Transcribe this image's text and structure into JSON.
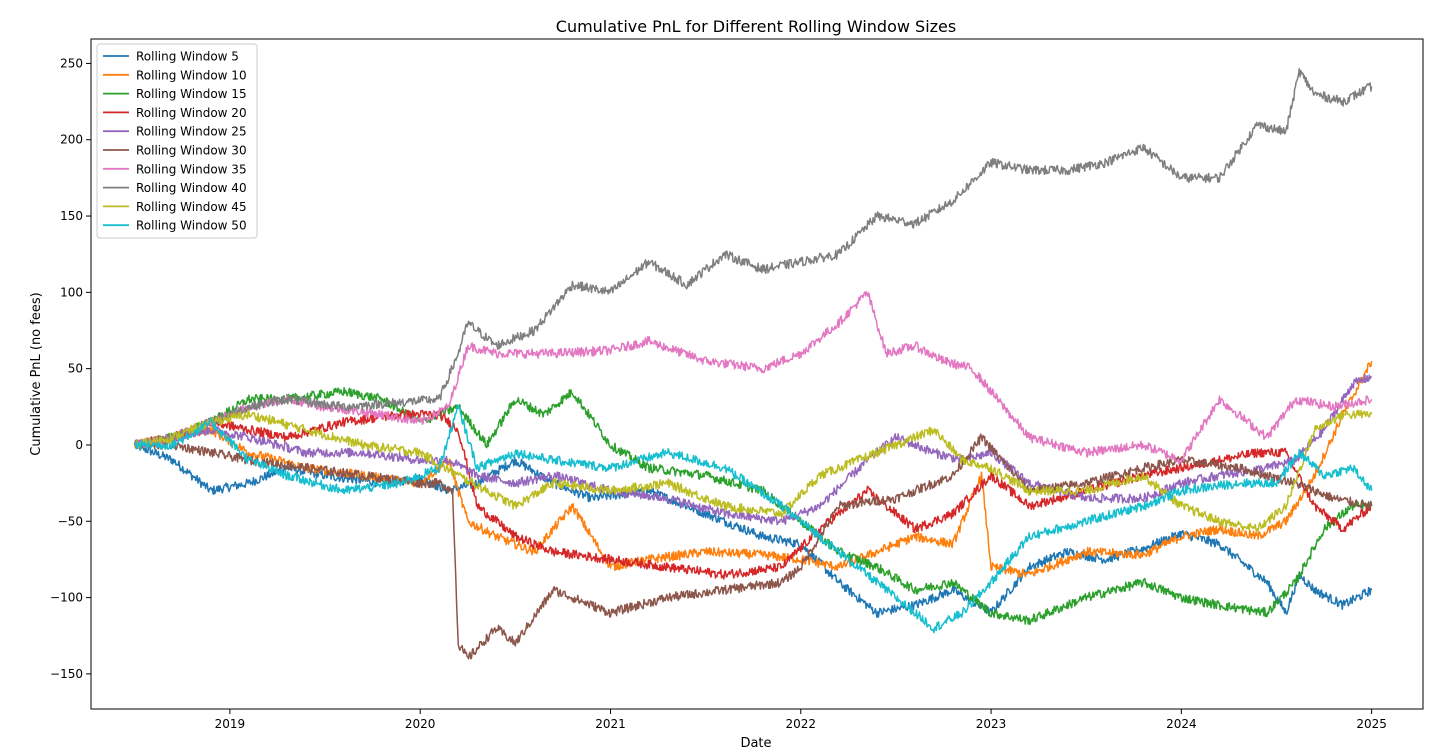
{
  "chart_data": {
    "type": "line",
    "title": "Cumulative PnL for Different Rolling Window Sizes",
    "xlabel": "Date",
    "ylabel": "Cumulative PnL (no fees)",
    "xlim": [
      2018.27,
      2025.27
    ],
    "ylim": [
      -173,
      266
    ],
    "x_ticks": [
      2019,
      2020,
      2021,
      2022,
      2023,
      2024,
      2025
    ],
    "x_tick_labels": [
      "2019",
      "2020",
      "2021",
      "2022",
      "2023",
      "2024",
      "2025"
    ],
    "y_ticks": [
      -150,
      -100,
      -50,
      0,
      50,
      100,
      150,
      200,
      250
    ],
    "y_tick_labels": [
      "−150",
      "−100",
      "−50",
      "0",
      "50",
      "100",
      "150",
      "200",
      "250"
    ],
    "grid": false,
    "legend_position": "top-left",
    "series": [
      {
        "name": "Rolling Window 5",
        "color": "#1f77b4",
        "x": [
          2018.5,
          2018.7,
          2018.9,
          2019.1,
          2019.3,
          2019.5,
          2019.8,
          2020.0,
          2020.15,
          2020.3,
          2020.5,
          2020.7,
          2020.9,
          2021.2,
          2021.5,
          2021.8,
          2022.0,
          2022.2,
          2022.4,
          2022.6,
          2022.8,
          2023.0,
          2023.2,
          2023.4,
          2023.6,
          2023.8,
          2024.0,
          2024.2,
          2024.45,
          2024.55,
          2024.62,
          2024.7,
          2024.85,
          2025.0
        ],
        "y": [
          0,
          -10,
          -30,
          -25,
          -15,
          -20,
          -25,
          -22,
          -30,
          -25,
          -10,
          -25,
          -35,
          -30,
          -45,
          -60,
          -65,
          -90,
          -110,
          -105,
          -95,
          -110,
          -80,
          -70,
          -75,
          -68,
          -58,
          -65,
          -90,
          -110,
          -85,
          -95,
          -105,
          -95
        ]
      },
      {
        "name": "Rolling Window 10",
        "color": "#ff7f0e",
        "x": [
          2018.5,
          2018.7,
          2018.9,
          2019.1,
          2019.4,
          2019.7,
          2020.0,
          2020.15,
          2020.25,
          2020.4,
          2020.6,
          2020.8,
          2021.0,
          2021.2,
          2021.5,
          2021.8,
          2022.0,
          2022.2,
          2022.4,
          2022.6,
          2022.8,
          2022.95,
          2023.0,
          2023.2,
          2023.5,
          2023.8,
          2024.0,
          2024.2,
          2024.4,
          2024.55,
          2024.7,
          2024.85,
          2025.0
        ],
        "y": [
          0,
          5,
          10,
          -5,
          -15,
          -20,
          -25,
          -10,
          -50,
          -60,
          -70,
          -40,
          -80,
          -75,
          -70,
          -72,
          -75,
          -80,
          -70,
          -60,
          -65,
          -20,
          -80,
          -85,
          -70,
          -72,
          -60,
          -55,
          -60,
          -50,
          -20,
          20,
          55
        ]
      },
      {
        "name": "Rolling Window 15",
        "color": "#2ca02c",
        "x": [
          2018.5,
          2018.7,
          2018.9,
          2019.1,
          2019.3,
          2019.6,
          2019.8,
          2020.0,
          2020.2,
          2020.35,
          2020.5,
          2020.65,
          2020.8,
          2021.0,
          2021.2,
          2021.5,
          2021.8,
          2022.0,
          2022.2,
          2022.4,
          2022.6,
          2022.8,
          2023.0,
          2023.2,
          2023.5,
          2023.8,
          2024.0,
          2024.2,
          2024.45,
          2024.6,
          2024.75,
          2024.9,
          2025.0
        ],
        "y": [
          0,
          5,
          15,
          30,
          30,
          35,
          30,
          15,
          25,
          0,
          30,
          20,
          35,
          0,
          -15,
          -20,
          -30,
          -50,
          -70,
          -80,
          -95,
          -90,
          -110,
          -115,
          -100,
          -90,
          -100,
          -105,
          -110,
          -90,
          -55,
          -40,
          -40
        ]
      },
      {
        "name": "Rolling Window 20",
        "color": "#d62728",
        "x": [
          2018.5,
          2018.7,
          2018.9,
          2019.1,
          2019.3,
          2019.6,
          2019.9,
          2020.1,
          2020.2,
          2020.3,
          2020.5,
          2020.7,
          2021.0,
          2021.3,
          2021.6,
          2021.9,
          2022.1,
          2022.35,
          2022.6,
          2022.8,
          2023.0,
          2023.2,
          2023.5,
          2023.8,
          2024.0,
          2024.2,
          2024.4,
          2024.55,
          2024.7,
          2024.85,
          2025.0
        ],
        "y": [
          0,
          5,
          15,
          10,
          5,
          15,
          20,
          20,
          10,
          -40,
          -60,
          -70,
          -75,
          -80,
          -85,
          -80,
          -55,
          -30,
          -55,
          -45,
          -20,
          -40,
          -30,
          -20,
          -15,
          -10,
          -5,
          -5,
          -40,
          -55,
          -40
        ]
      },
      {
        "name": "Rolling Window 25",
        "color": "#9467bd",
        "x": [
          2018.5,
          2018.7,
          2018.9,
          2019.1,
          2019.4,
          2019.7,
          2020.0,
          2020.15,
          2020.3,
          2020.5,
          2020.7,
          2021.0,
          2021.3,
          2021.6,
          2021.9,
          2022.1,
          2022.35,
          2022.5,
          2022.7,
          2022.85,
          2023.0,
          2023.2,
          2023.5,
          2023.8,
          2024.0,
          2024.2,
          2024.45,
          2024.6,
          2024.75,
          2024.9,
          2025.0
        ],
        "y": [
          0,
          5,
          10,
          5,
          -5,
          -5,
          -10,
          -10,
          -20,
          -25,
          -20,
          -30,
          -35,
          -45,
          -50,
          -40,
          -10,
          5,
          -5,
          -10,
          -5,
          -25,
          -35,
          -35,
          -25,
          -20,
          -15,
          -10,
          10,
          40,
          45
        ]
      },
      {
        "name": "Rolling Window 30",
        "color": "#8c564b",
        "x": [
          2018.5,
          2018.7,
          2018.9,
          2019.1,
          2019.4,
          2019.7,
          2020.0,
          2020.1,
          2020.17,
          2020.2,
          2020.25,
          2020.4,
          2020.5,
          2020.7,
          2021.0,
          2021.3,
          2021.6,
          2021.9,
          2022.0,
          2022.2,
          2022.5,
          2022.8,
          2022.95,
          2023.2,
          2023.5,
          2023.8,
          2024.0,
          2024.3,
          2024.6,
          2024.8,
          2025.0
        ],
        "y": [
          0,
          0,
          -5,
          -10,
          -15,
          -20,
          -25,
          -25,
          -30,
          -130,
          -140,
          -120,
          -130,
          -95,
          -110,
          -100,
          -95,
          -90,
          -80,
          -40,
          -35,
          -20,
          5,
          -30,
          -25,
          -15,
          -10,
          -15,
          -25,
          -35,
          -40
        ]
      },
      {
        "name": "Rolling Window 35",
        "color": "#e377c2",
        "x": [
          2018.5,
          2018.7,
          2018.9,
          2019.1,
          2019.3,
          2019.5,
          2019.8,
          2020.0,
          2020.15,
          2020.25,
          2020.4,
          2020.7,
          2021.0,
          2021.2,
          2021.5,
          2021.8,
          2022.0,
          2022.2,
          2022.35,
          2022.45,
          2022.6,
          2022.75,
          2022.9,
          2023.0,
          2023.2,
          2023.5,
          2023.8,
          2024.0,
          2024.2,
          2024.45,
          2024.6,
          2024.8,
          2025.0
        ],
        "y": [
          0,
          5,
          15,
          25,
          30,
          25,
          20,
          15,
          25,
          65,
          60,
          60,
          62,
          68,
          55,
          50,
          60,
          80,
          100,
          60,
          65,
          55,
          50,
          35,
          5,
          -5,
          0,
          -10,
          30,
          5,
          30,
          25,
          30
        ]
      },
      {
        "name": "Rolling Window 40",
        "color": "#7f7f7f",
        "x": [
          2018.5,
          2018.7,
          2018.9,
          2019.1,
          2019.3,
          2019.6,
          2019.9,
          2020.1,
          2020.2,
          2020.25,
          2020.4,
          2020.6,
          2020.8,
          2021.0,
          2021.2,
          2021.4,
          2021.6,
          2021.8,
          2022.0,
          2022.2,
          2022.4,
          2022.6,
          2022.8,
          2023.0,
          2023.2,
          2023.4,
          2023.6,
          2023.8,
          2024.0,
          2024.2,
          2024.4,
          2024.55,
          2024.62,
          2024.7,
          2024.85,
          2025.0
        ],
        "y": [
          0,
          5,
          15,
          25,
          30,
          25,
          28,
          30,
          60,
          80,
          65,
          75,
          105,
          100,
          120,
          105,
          125,
          115,
          120,
          125,
          150,
          145,
          160,
          185,
          180,
          180,
          185,
          195,
          175,
          175,
          210,
          205,
          245,
          230,
          225,
          235
        ]
      },
      {
        "name": "Rolling Window 45",
        "color": "#bcbd22",
        "x": [
          2018.5,
          2018.7,
          2018.9,
          2019.1,
          2019.4,
          2019.7,
          2020.0,
          2020.2,
          2020.35,
          2020.5,
          2020.7,
          2021.0,
          2021.3,
          2021.6,
          2021.9,
          2022.1,
          2022.3,
          2022.5,
          2022.7,
          2022.85,
          2023.0,
          2023.2,
          2023.5,
          2023.8,
          2024.0,
          2024.2,
          2024.4,
          2024.55,
          2024.7,
          2024.85,
          2025.0
        ],
        "y": [
          0,
          5,
          15,
          20,
          10,
          0,
          -5,
          -20,
          -30,
          -40,
          -25,
          -30,
          -25,
          -40,
          -45,
          -20,
          -10,
          0,
          10,
          -10,
          -15,
          -30,
          -30,
          -20,
          -40,
          -50,
          -55,
          -40,
          10,
          20,
          20
        ]
      },
      {
        "name": "Rolling Window 50",
        "color": "#17becf",
        "x": [
          2018.5,
          2018.7,
          2018.9,
          2019.1,
          2019.3,
          2019.6,
          2019.9,
          2020.1,
          2020.2,
          2020.3,
          2020.5,
          2020.7,
          2021.0,
          2021.3,
          2021.6,
          2021.9,
          2022.1,
          2022.3,
          2022.5,
          2022.7,
          2022.85,
          2023.0,
          2023.2,
          2023.5,
          2023.8,
          2024.0,
          2024.3,
          2024.5,
          2024.62,
          2024.75,
          2024.9,
          2025.0
        ],
        "y": [
          0,
          0,
          15,
          -10,
          -20,
          -30,
          -25,
          -15,
          25,
          -15,
          -5,
          -10,
          -15,
          -5,
          -15,
          -40,
          -60,
          -80,
          -100,
          -120,
          -110,
          -90,
          -60,
          -50,
          -40,
          -30,
          -25,
          -25,
          -5,
          -20,
          -15,
          -30
        ]
      }
    ]
  }
}
